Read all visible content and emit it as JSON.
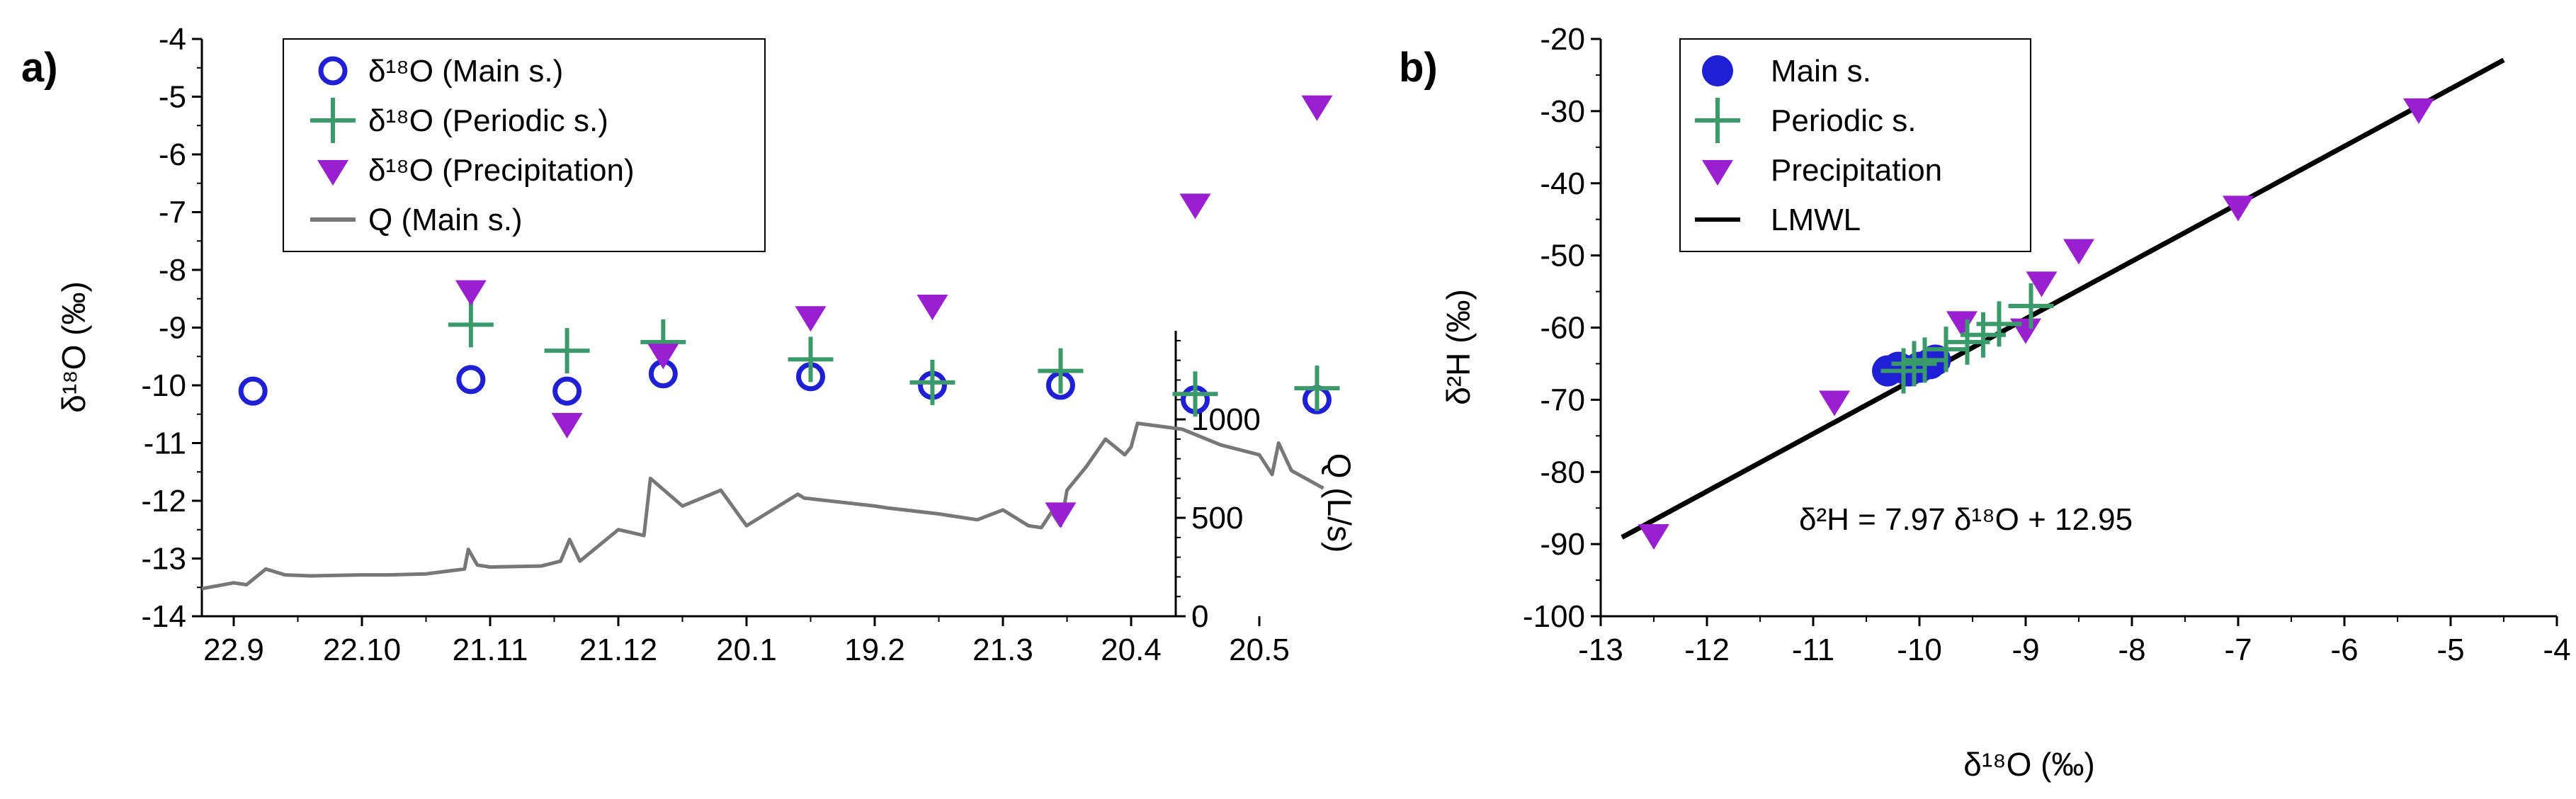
{
  "colors": {
    "main": "#1f1fd6",
    "periodic": "#3a9a6a",
    "precip": "#9a1fd1",
    "discharge": "#777777",
    "lmwl": "#000000"
  },
  "chart_data": [
    {
      "panel_label": "a)",
      "type": "scatter",
      "xlabel": "",
      "ylabel": "δ¹⁸O (‰)",
      "ylim": [
        -14,
        -4
      ],
      "yticks": [
        -4,
        -5,
        -6,
        -7,
        -8,
        -9,
        -10,
        -11,
        -12,
        -13,
        -14
      ],
      "y2label": "Q (L/s)",
      "y2lim": [
        0,
        1450
      ],
      "y2ticks": [
        0,
        500,
        1000
      ],
      "categories": [
        "22.9",
        "22.10",
        "21.11",
        "21.12",
        "20.1",
        "19.2",
        "21.3",
        "20.4",
        "20.5"
      ],
      "legend": [
        "δ¹⁸O (Main s.)",
        "δ¹⁸O (Periodic s.)",
        "δ¹⁸O (Precipitation)",
        "Q (Main s.)"
      ],
      "series": [
        {
          "name": "δ¹⁸O (Main s.)",
          "marker": "open-circle",
          "x": [
            0.15,
            1.85,
            2.6,
            3.35,
            4.5,
            5.45,
            6.45,
            7.5,
            8.45
          ],
          "values": [
            -10.1,
            -9.9,
            -10.1,
            -9.8,
            -9.85,
            -10.0,
            -10.0,
            -10.25,
            -10.25
          ]
        },
        {
          "name": "δ¹⁸O (Periodic s.)",
          "marker": "plus",
          "x": [
            1.85,
            2.6,
            3.35,
            4.5,
            5.45,
            6.45,
            7.5,
            8.45
          ],
          "values": [
            -8.95,
            -9.4,
            -9.25,
            -9.55,
            -9.95,
            -9.75,
            -10.15,
            -10.05
          ]
        },
        {
          "name": "δ¹⁸O (Precipitation)",
          "marker": "down-triangle",
          "x": [
            1.85,
            2.6,
            3.35,
            4.5,
            5.45,
            6.45,
            7.5,
            8.45
          ],
          "values": [
            -8.4,
            -10.7,
            -9.5,
            -8.85,
            -8.65,
            -12.25,
            -6.9,
            -5.2
          ]
        },
        {
          "name": "Q (Main s.)",
          "marker": "line",
          "axis": "right",
          "x": [
            -0.25,
            0.0,
            0.1,
            0.25,
            0.4,
            0.6,
            1.0,
            1.2,
            1.5,
            1.8,
            1.83,
            1.9,
            2.0,
            2.4,
            2.55,
            2.62,
            2.7,
            3.0,
            3.2,
            3.25,
            3.5,
            3.8,
            4.0,
            4.4,
            4.45,
            5.0,
            5.1,
            5.5,
            5.8,
            6.0,
            6.2,
            6.3,
            6.38,
            6.45,
            6.5,
            6.65,
            6.8,
            6.95,
            7.0,
            7.05,
            7.4,
            7.7,
            8.0,
            8.1,
            8.15,
            8.25,
            8.5
          ],
          "values": [
            140,
            170,
            160,
            240,
            210,
            205,
            210,
            210,
            215,
            240,
            340,
            260,
            250,
            255,
            280,
            390,
            280,
            440,
            410,
            700,
            560,
            640,
            460,
            620,
            600,
            560,
            550,
            520,
            490,
            540,
            460,
            450,
            530,
            460,
            640,
            760,
            900,
            820,
            860,
            980,
            950,
            870,
            820,
            720,
            880,
            740,
            650
          ]
        }
      ]
    },
    {
      "panel_label": "b)",
      "type": "scatter",
      "xlabel": "δ¹⁸O (‰)",
      "ylabel": "δ²H (‰)",
      "xlim": [
        -13,
        -4
      ],
      "ylim": [
        -100,
        -20
      ],
      "xticks": [
        -13,
        -12,
        -11,
        -10,
        -9,
        -8,
        -7,
        -6,
        -5,
        -4
      ],
      "yticks": [
        -20,
        -30,
        -40,
        -50,
        -60,
        -70,
        -80,
        -90,
        -100
      ],
      "legend": [
        "Main s.",
        "Periodic s.",
        "Precipitation",
        "LMWL"
      ],
      "annotation": "δ²H = 7.97 δ¹⁸O + 12.95",
      "lmwl": {
        "slope": 7.97,
        "intercept": 12.95,
        "x_range": [
          -12.8,
          -4.5
        ]
      },
      "series": [
        {
          "name": "Main s.",
          "marker": "filled-circle",
          "x": [
            -10.3,
            -10.2,
            -10.1,
            -10.0,
            -9.9,
            -9.85
          ],
          "y": [
            -66,
            -65.5,
            -66,
            -65.5,
            -65,
            -64.5
          ]
        },
        {
          "name": "Periodic s.",
          "marker": "plus",
          "x": [
            -10.15,
            -10.05,
            -9.95,
            -9.75,
            -9.55,
            -9.4,
            -9.25,
            -8.95
          ],
          "y": [
            -66,
            -65,
            -64.5,
            -63,
            -62,
            -61,
            -59.5,
            -57
          ]
        },
        {
          "name": "Precipitation",
          "marker": "down-triangle",
          "x": [
            -12.5,
            -10.8,
            -9.6,
            -9.0,
            -8.85,
            -8.5,
            -7.0,
            -5.3
          ],
          "y": [
            -89,
            -70.5,
            -59.5,
            -60.5,
            -54,
            -49.5,
            -43.5,
            -30
          ]
        }
      ]
    }
  ]
}
